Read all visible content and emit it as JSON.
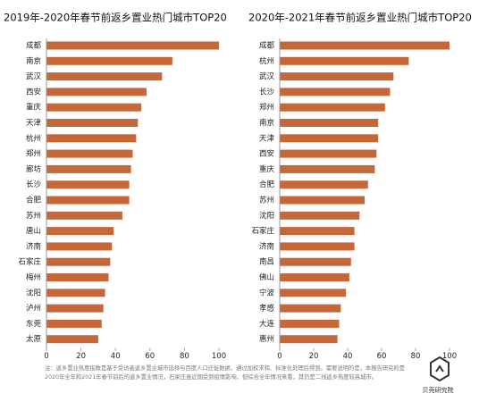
{
  "chart_data": [
    {
      "type": "barh",
      "title": "2019年-2020年春节前返乡置业热门城市TOP20",
      "categories": [
        "成都",
        "南京",
        "武汉",
        "西安",
        "重庆",
        "天津",
        "杭州",
        "郑州",
        "廊坊",
        "长沙",
        "合肥",
        "苏州",
        "唐山",
        "济南",
        "石家庄",
        "梅州",
        "沈阳",
        "泸州",
        "东莞",
        "太原"
      ],
      "values": [
        100,
        73,
        67,
        58,
        55,
        53,
        52,
        50,
        49,
        48,
        48,
        44,
        39,
        38,
        37,
        36,
        34,
        33,
        32,
        30
      ],
      "color": "#c4683a",
      "xlim": [
        0,
        100
      ],
      "xticks": [
        0,
        20,
        40,
        60,
        80,
        100
      ]
    },
    {
      "type": "barh",
      "title": "2020年-2021年春节前返乡置业热门城市TOP20",
      "categories": [
        "成都",
        "杭州",
        "武汉",
        "长沙",
        "郑州",
        "南京",
        "天津",
        "西安",
        "重庆",
        "合肥",
        "苏州",
        "沈阳",
        "石家庄",
        "济南",
        "南昌",
        "佛山",
        "宁波",
        "孝感",
        "大连",
        "惠州"
      ],
      "values": [
        100,
        76,
        67,
        65,
        62,
        58,
        58,
        57,
        56,
        52,
        50,
        47,
        44,
        44,
        42,
        41,
        39,
        36,
        35,
        34
      ],
      "color": "#c4683a",
      "xlim": [
        0,
        100
      ],
      "xticks": [
        0,
        20,
        40,
        60,
        80,
        100
      ]
    }
  ],
  "note": "注：返乡置业热度指数是基于受访者返乡置业城市选择与百度人口迁徙数据，通过加权求和、标准化处理后得到。需要说明的是，本报告研究的是2020年全年和2021年春节前后的返乡置业情况，石家庄虽近期受到疫情影响，但综合全年情况来看，其仍是二线返乡热度较高城市。",
  "brand": "贝壳研究院"
}
